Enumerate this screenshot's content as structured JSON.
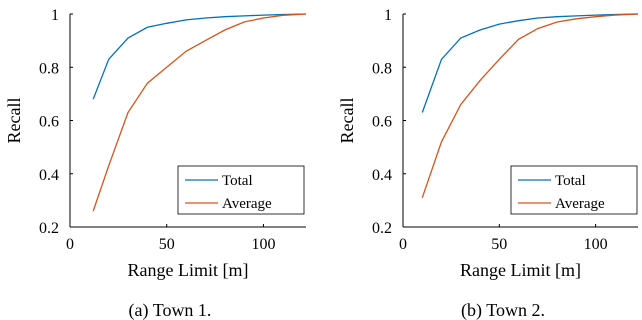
{
  "chart_data": [
    {
      "type": "line",
      "caption": "(a) Town 1.",
      "xlabel": "Range Limit [m]",
      "ylabel": "Recall",
      "xlim": [
        0,
        122
      ],
      "ylim": [
        0.2,
        1
      ],
      "xticks": [
        0,
        50,
        100
      ],
      "yticks": [
        0.2,
        0.4,
        0.6,
        0.8,
        1
      ],
      "ytick_labels": [
        "0.2",
        "0.4",
        "0.6",
        "0.8",
        "1"
      ],
      "grid": false,
      "legend": "bottom-right",
      "series": [
        {
          "name": "Total",
          "color": "#0072BD",
          "x": [
            12,
            20,
            30,
            40,
            50,
            60,
            70,
            80,
            90,
            100,
            110,
            122
          ],
          "y": [
            0.68,
            0.83,
            0.91,
            0.95,
            0.965,
            0.978,
            0.985,
            0.99,
            0.993,
            0.996,
            0.998,
            1.0
          ]
        },
        {
          "name": "Average",
          "color": "#D95319",
          "x": [
            12,
            20,
            30,
            40,
            50,
            60,
            70,
            80,
            90,
            100,
            110,
            122
          ],
          "y": [
            0.26,
            0.43,
            0.63,
            0.74,
            0.8,
            0.86,
            0.9,
            0.94,
            0.97,
            0.985,
            0.995,
            1.0
          ]
        }
      ]
    },
    {
      "type": "line",
      "caption": "(b) Town 2.",
      "xlabel": "Range Limit [m]",
      "ylabel": "Recall",
      "xlim": [
        0,
        122
      ],
      "ylim": [
        0.2,
        1
      ],
      "xticks": [
        0,
        50,
        100
      ],
      "yticks": [
        0.2,
        0.4,
        0.6,
        0.8,
        1
      ],
      "ytick_labels": [
        "0.2",
        "0.4",
        "0.6",
        "0.8",
        "1"
      ],
      "grid": false,
      "legend": "bottom-right",
      "series": [
        {
          "name": "Total",
          "color": "#0072BD",
          "x": [
            10,
            20,
            30,
            40,
            50,
            60,
            70,
            80,
            90,
            100,
            110,
            122
          ],
          "y": [
            0.63,
            0.83,
            0.91,
            0.94,
            0.962,
            0.975,
            0.985,
            0.99,
            0.993,
            0.996,
            0.998,
            1.0
          ]
        },
        {
          "name": "Average",
          "color": "#D95319",
          "x": [
            10,
            20,
            30,
            40,
            50,
            60,
            70,
            80,
            90,
            100,
            110,
            122
          ],
          "y": [
            0.31,
            0.52,
            0.66,
            0.75,
            0.83,
            0.905,
            0.945,
            0.97,
            0.982,
            0.99,
            0.996,
            1.0
          ]
        }
      ]
    }
  ]
}
